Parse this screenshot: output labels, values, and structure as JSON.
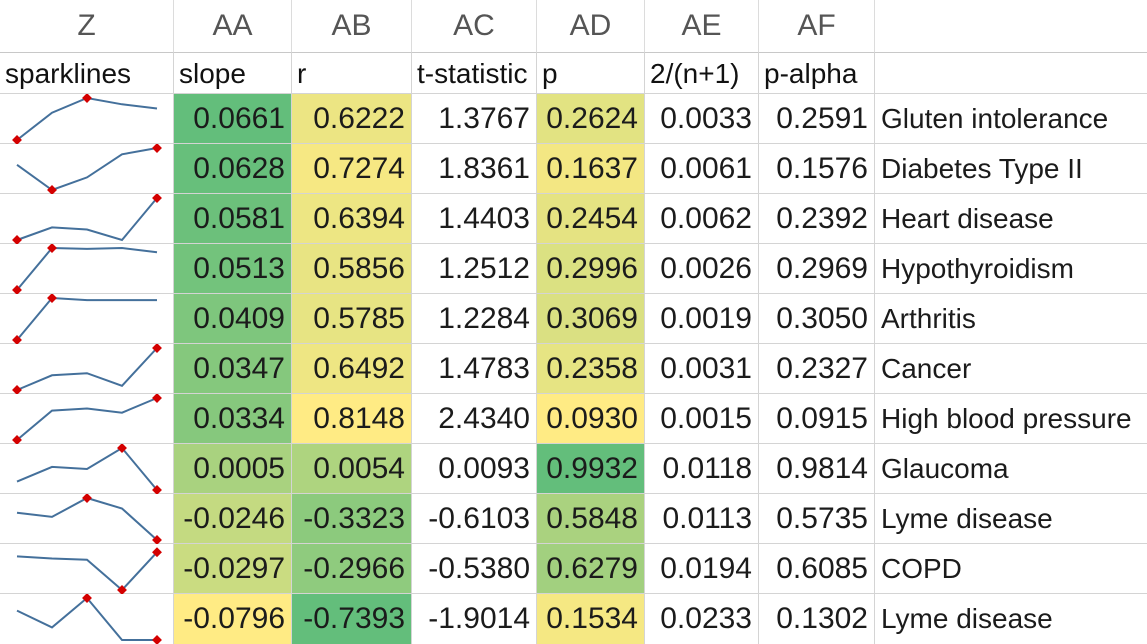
{
  "columns": [
    "Z",
    "AA",
    "AB",
    "AC",
    "AD",
    "AE",
    "AF",
    ""
  ],
  "headers": [
    "sparklines",
    "slope",
    "r",
    "t-statistic",
    "p",
    "2/(n+1)",
    "p-alpha",
    ""
  ],
  "colors": {
    "spark_line": "#44709b",
    "spark_marker": "#d40000",
    "scale_green": "#63be7b",
    "scale_yellow": "#ffeb84"
  },
  "rows": [
    {
      "slope": "0.0661",
      "r": "0.6222",
      "t": "1.3767",
      "p": "0.2624",
      "n": "0.0033",
      "pa": "0.2591",
      "label": "Gluten intolerance",
      "spark": [
        0.0,
        0.65,
        1.0,
        0.85,
        0.75
      ],
      "markers": [
        0,
        2
      ]
    },
    {
      "slope": "0.0628",
      "r": "0.7274",
      "t": "1.8361",
      "p": "0.1637",
      "n": "0.0061",
      "pa": "0.1576",
      "label": "Diabetes Type II",
      "spark": [
        0.6,
        0.0,
        0.3,
        0.85,
        1.0
      ],
      "markers": [
        1,
        4
      ]
    },
    {
      "slope": "0.0581",
      "r": "0.6394",
      "t": "1.4403",
      "p": "0.2454",
      "n": "0.0062",
      "pa": "0.2392",
      "label": "Heart disease",
      "spark": [
        0.0,
        0.3,
        0.25,
        0.0,
        1.0
      ],
      "markers": [
        0,
        4
      ]
    },
    {
      "slope": "0.0513",
      "r": "0.5856",
      "t": "1.2512",
      "p": "0.2996",
      "n": "0.0026",
      "pa": "0.2969",
      "label": "Hypothyroidism",
      "spark": [
        0.0,
        1.0,
        0.98,
        1.0,
        0.9
      ],
      "markers": [
        0,
        1
      ]
    },
    {
      "slope": "0.0409",
      "r": "0.5785",
      "t": "1.2284",
      "p": "0.3069",
      "n": "0.0019",
      "pa": "0.3050",
      "label": "Arthritis",
      "spark": [
        0.0,
        1.0,
        0.95,
        0.95,
        0.95
      ],
      "markers": [
        0,
        1
      ]
    },
    {
      "slope": "0.0347",
      "r": "0.6492",
      "t": "1.4783",
      "p": "0.2358",
      "n": "0.0031",
      "pa": "0.2327",
      "label": "Cancer",
      "spark": [
        0.0,
        0.35,
        0.4,
        0.1,
        1.0
      ],
      "markers": [
        0,
        4
      ]
    },
    {
      "slope": "0.0334",
      "r": "0.8148",
      "t": "2.4340",
      "p": "0.0930",
      "n": "0.0015",
      "pa": "0.0915",
      "label": "High blood pressure",
      "spark": [
        0.0,
        0.7,
        0.75,
        0.65,
        1.0
      ],
      "markers": [
        0,
        4
      ]
    },
    {
      "slope": "0.0005",
      "r": "0.0054",
      "t": "0.0093",
      "p": "0.9932",
      "n": "0.0118",
      "pa": "0.9814",
      "label": "Glaucoma",
      "spark": [
        0.2,
        0.55,
        0.5,
        1.0,
        0.0
      ],
      "markers": [
        3,
        4
      ]
    },
    {
      "slope": "-0.0246",
      "r": "-0.3323",
      "t": "-0.6103",
      "p": "0.5848",
      "n": "0.0113",
      "pa": "0.5735",
      "label": "Lyme disease",
      "spark": [
        0.65,
        0.55,
        1.0,
        0.75,
        0.0
      ],
      "markers": [
        2,
        4
      ]
    },
    {
      "slope": "-0.0297",
      "r": "-0.2966",
      "t": "-0.5380",
      "p": "0.6279",
      "n": "0.0194",
      "pa": "0.6085",
      "label": "COPD",
      "spark": [
        0.8,
        0.75,
        0.72,
        0.0,
        0.9
      ],
      "markers": [
        3,
        4
      ]
    },
    {
      "slope": "-0.0796",
      "r": "-0.7393",
      "t": "-1.9014",
      "p": "0.1534",
      "n": "0.0233",
      "pa": "0.1302",
      "label": "Lyme disease",
      "spark": [
        0.7,
        0.3,
        1.0,
        0.0,
        0.0
      ],
      "markers": [
        2,
        4
      ]
    }
  ]
}
